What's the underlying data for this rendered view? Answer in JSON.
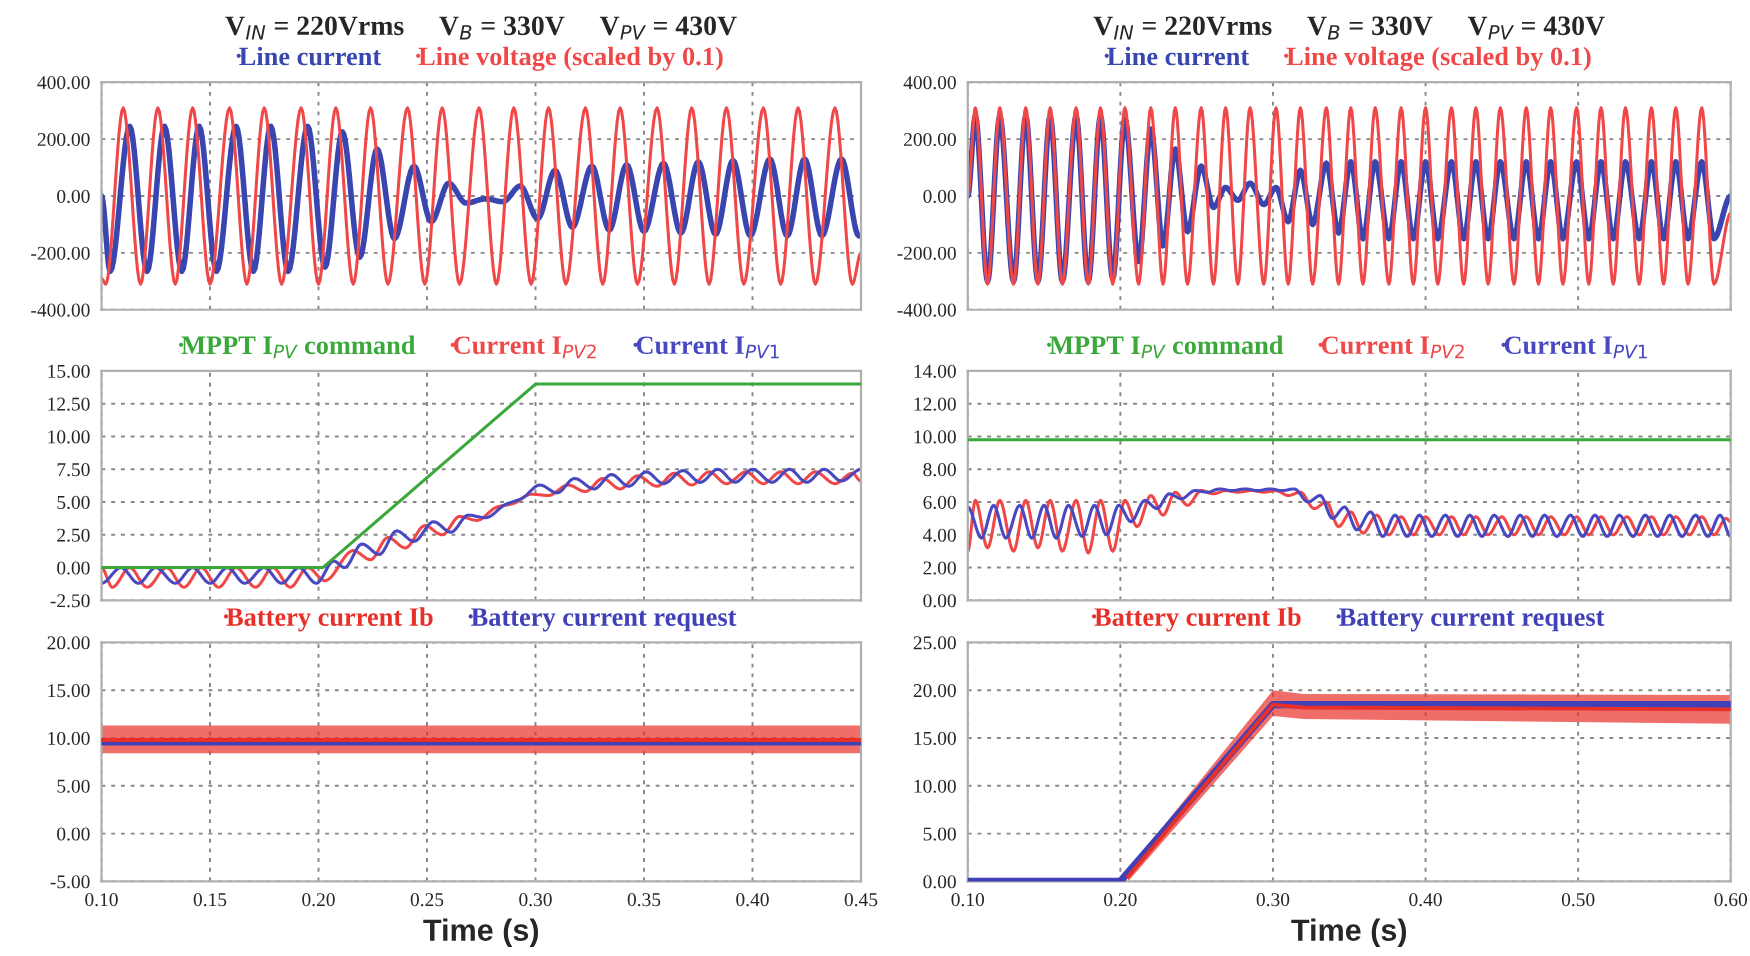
{
  "chart_data": [
    {
      "type": "line",
      "title": "V$_{IN}$ = 220Vrms     V$_{B}$ = 330V     V$_{PV}$ = 430V",
      "legend": "top",
      "grid": true,
      "tick_labels": "y",
      "xlim": [
        0.1,
        0.45
      ],
      "xticks": [
        0.1,
        0.15,
        0.2,
        0.25,
        0.3,
        0.35,
        0.4,
        0.45
      ],
      "ylim": [
        -400,
        400
      ],
      "yticks": [
        {
          "value": -400,
          "label": "-400.00"
        },
        {
          "value": -200,
          "label": "-200.00"
        },
        {
          "value": 0,
          "label": "0.00"
        },
        {
          "value": 200,
          "label": "200.00"
        },
        {
          "value": 400,
          "label": "400.00"
        }
      ],
      "series": [
        {
          "name": "Line current",
          "color": "#3a46b0",
          "x": [
            0.1,
            0.104,
            0.113,
            0.121,
            0.129,
            0.137,
            0.145,
            0.153,
            0.162,
            0.17,
            0.178,
            0.186,
            0.195,
            0.203,
            0.211,
            0.219,
            0.227,
            0.235,
            0.244,
            0.252,
            0.26,
            0.268,
            0.277,
            0.285,
            0.293,
            0.301,
            0.309,
            0.317,
            0.326,
            0.334,
            0.342,
            0.35,
            0.359,
            0.367,
            0.375,
            0.383,
            0.391,
            0.399,
            0.408,
            0.416,
            0.424,
            0.432,
            0.441,
            0.449
          ],
          "values": [
            0,
            -265,
            245,
            -265,
            245,
            -265,
            245,
            -265,
            245,
            -265,
            245,
            -265,
            245,
            -250,
            225,
            -215,
            165,
            -150,
            105,
            -90,
            45,
            -25,
            -10,
            -20,
            35,
            -80,
            90,
            -110,
            105,
            -120,
            110,
            -125,
            115,
            -130,
            120,
            -135,
            125,
            -140,
            130,
            -140,
            130,
            -140,
            130,
            -140
          ]
        },
        {
          "name": "Line voltage (scaled by 0.1)",
          "color": "#f04848",
          "x": [
            0.1,
            0.102,
            0.11,
            0.118,
            0.126,
            0.134,
            0.142,
            0.15,
            0.159,
            0.167,
            0.175,
            0.183,
            0.192,
            0.2,
            0.208,
            0.216,
            0.224,
            0.232,
            0.241,
            0.249,
            0.257,
            0.265,
            0.274,
            0.282,
            0.29,
            0.298,
            0.306,
            0.314,
            0.323,
            0.331,
            0.339,
            0.347,
            0.356,
            0.364,
            0.372,
            0.38,
            0.388,
            0.396,
            0.405,
            0.413,
            0.421,
            0.429,
            0.438,
            0.446,
            0.45
          ],
          "values": [
            -290,
            -310,
            310,
            -310,
            310,
            -310,
            310,
            -310,
            310,
            -310,
            310,
            -310,
            310,
            -310,
            310,
            -310,
            310,
            -310,
            310,
            -310,
            310,
            -310,
            310,
            -310,
            310,
            -310,
            310,
            -310,
            310,
            -310,
            310,
            -310,
            310,
            -310,
            310,
            -310,
            310,
            -310,
            310,
            -310,
            310,
            -310,
            310,
            -310,
            -200
          ]
        }
      ]
    },
    {
      "type": "line",
      "title": "V$_{IN}$ = 220Vrms     V$_{B}$ = 330V     V$_{PV}$ = 430V",
      "legend": "top",
      "grid": true,
      "tick_labels": "y",
      "xlim": [
        0.1,
        0.6
      ],
      "xticks": [
        0.1,
        0.2,
        0.3,
        0.4,
        0.5,
        0.6
      ],
      "ylim": [
        -400,
        400
      ],
      "yticks": [
        {
          "value": -400,
          "label": "-400.00"
        },
        {
          "value": -200,
          "label": "-200.00"
        },
        {
          "value": 0,
          "label": "0.00"
        },
        {
          "value": 200,
          "label": "200.00"
        },
        {
          "value": 400,
          "label": "400.00"
        }
      ],
      "series": [
        {
          "name": "Line current",
          "color": "#3a46b0",
          "x": [
            0.1,
            0.105,
            0.113,
            0.121,
            0.13,
            0.138,
            0.146,
            0.154,
            0.162,
            0.171,
            0.179,
            0.187,
            0.195,
            0.203,
            0.212,
            0.22,
            0.228,
            0.236,
            0.244,
            0.253,
            0.261,
            0.269,
            0.277,
            0.285,
            0.294,
            0.302,
            0.31,
            0.318,
            0.326,
            0.335,
            0.343,
            0.351,
            0.359,
            0.367,
            0.376,
            0.384,
            0.392,
            0.4,
            0.408,
            0.417,
            0.425,
            0.433,
            0.441,
            0.449,
            0.458,
            0.466,
            0.474,
            0.482,
            0.49,
            0.499,
            0.507,
            0.515,
            0.523,
            0.531,
            0.54,
            0.548,
            0.556,
            0.564,
            0.572,
            0.581,
            0.589,
            0.6
          ],
          "values": [
            0,
            280,
            -300,
            280,
            -300,
            280,
            -300,
            280,
            -300,
            280,
            -300,
            280,
            -290,
            270,
            -230,
            235,
            -175,
            165,
            -125,
            105,
            -40,
            30,
            -15,
            45,
            -30,
            30,
            -90,
            90,
            -100,
            115,
            -130,
            120,
            -150,
            120,
            -150,
            120,
            -150,
            120,
            -150,
            120,
            -150,
            120,
            -150,
            120,
            -150,
            120,
            -150,
            120,
            -150,
            120,
            -150,
            120,
            -150,
            120,
            -150,
            120,
            -150,
            120,
            -150,
            120,
            -150,
            0
          ]
        },
        {
          "name": "Line voltage (scaled by 0.1)",
          "color": "#f04848",
          "x": [
            0.1,
            0.105,
            0.113,
            0.121,
            0.13,
            0.138,
            0.146,
            0.154,
            0.162,
            0.171,
            0.179,
            0.187,
            0.195,
            0.203,
            0.212,
            0.22,
            0.228,
            0.236,
            0.244,
            0.253,
            0.261,
            0.269,
            0.277,
            0.285,
            0.294,
            0.302,
            0.31,
            0.318,
            0.326,
            0.335,
            0.343,
            0.351,
            0.359,
            0.367,
            0.376,
            0.384,
            0.392,
            0.4,
            0.408,
            0.417,
            0.425,
            0.433,
            0.441,
            0.449,
            0.458,
            0.466,
            0.474,
            0.482,
            0.49,
            0.499,
            0.507,
            0.515,
            0.523,
            0.531,
            0.54,
            0.548,
            0.556,
            0.564,
            0.572,
            0.581,
            0.589,
            0.6
          ],
          "values": [
            0,
            310,
            -310,
            310,
            -310,
            310,
            -310,
            310,
            -310,
            310,
            -310,
            310,
            -310,
            310,
            -310,
            310,
            -310,
            310,
            -310,
            310,
            -310,
            310,
            -310,
            310,
            -310,
            310,
            -310,
            310,
            -310,
            310,
            -310,
            310,
            -310,
            310,
            -310,
            310,
            -310,
            310,
            -310,
            310,
            -310,
            310,
            -310,
            310,
            -310,
            310,
            -310,
            310,
            -310,
            310,
            -310,
            310,
            -310,
            310,
            -310,
            310,
            -310,
            310,
            -310,
            310,
            -310,
            -60
          ]
        }
      ]
    },
    {
      "type": "line",
      "legend": "top",
      "grid": true,
      "tick_labels": "y",
      "xlim": [
        0.1,
        0.45
      ],
      "xticks": [
        0.1,
        0.15,
        0.2,
        0.25,
        0.3,
        0.35,
        0.4,
        0.45
      ],
      "ylim": [
        -2.5,
        15
      ],
      "yticks": [
        {
          "value": -2.5,
          "label": "-2.50"
        },
        {
          "value": 0,
          "label": "0.00"
        },
        {
          "value": 2.5,
          "label": "2.50"
        },
        {
          "value": 5,
          "label": "5.00"
        },
        {
          "value": 7.5,
          "label": "7.50"
        },
        {
          "value": 10,
          "label": "10.00"
        },
        {
          "value": 12.5,
          "label": "12.50"
        },
        {
          "value": 15,
          "label": "15.00"
        }
      ],
      "series": [
        {
          "name": "MPPT I$_{PV}$ command",
          "color": "#3aa83a",
          "x": [
            0.1,
            0.202,
            0.3,
            0.45
          ],
          "values": [
            0,
            0,
            14,
            14
          ]
        },
        {
          "name": "Current I$_{PV2}$",
          "color": "#f04848",
          "x": [
            0.1,
            0.105,
            0.113,
            0.121,
            0.13,
            0.138,
            0.146,
            0.154,
            0.162,
            0.171,
            0.179,
            0.187,
            0.195,
            0.203,
            0.216,
            0.224,
            0.232,
            0.24,
            0.249,
            0.257,
            0.265,
            0.273,
            0.282,
            0.29,
            0.298,
            0.306,
            0.315,
            0.323,
            0.331,
            0.339,
            0.347,
            0.356,
            0.364,
            0.372,
            0.38,
            0.388,
            0.397,
            0.405,
            0.413,
            0.421,
            0.429,
            0.438,
            0.446,
            0.45
          ],
          "values": [
            0,
            -1.5,
            0,
            -1.5,
            0,
            -1.5,
            0,
            -1.5,
            0,
            -1.5,
            0,
            -1.5,
            0,
            -1.0,
            1.3,
            0.6,
            2.3,
            1.5,
            3.2,
            2.5,
            3.9,
            3.6,
            4.6,
            4.9,
            5.6,
            5.5,
            6.3,
            5.8,
            6.8,
            6.0,
            7.0,
            6.2,
            7.2,
            6.3,
            7.3,
            6.4,
            7.3,
            6.4,
            7.3,
            6.4,
            7.3,
            6.4,
            7.2,
            6.6
          ]
        },
        {
          "name": "Current I$_{PV1}$",
          "color": "#4848c0",
          "x": [
            0.1,
            0.109,
            0.117,
            0.125,
            0.134,
            0.142,
            0.15,
            0.158,
            0.166,
            0.175,
            0.183,
            0.191,
            0.199,
            0.207,
            0.212,
            0.22,
            0.228,
            0.236,
            0.244,
            0.253,
            0.261,
            0.269,
            0.277,
            0.286,
            0.294,
            0.302,
            0.31,
            0.318,
            0.327,
            0.335,
            0.343,
            0.351,
            0.359,
            0.368,
            0.376,
            0.384,
            0.392,
            0.4,
            0.409,
            0.417,
            0.425,
            0.433,
            0.441,
            0.45
          ],
          "values": [
            -1.2,
            0,
            -1.2,
            0,
            -1.2,
            0,
            -1.2,
            0,
            -1.2,
            0,
            -1.2,
            0,
            -1.2,
            0.5,
            0.0,
            1.8,
            1.0,
            2.8,
            2.0,
            3.5,
            2.7,
            4.0,
            3.8,
            4.8,
            5.3,
            6.3,
            5.7,
            6.8,
            6.0,
            7.1,
            6.2,
            7.3,
            6.4,
            7.4,
            6.5,
            7.5,
            6.5,
            7.5,
            6.5,
            7.5,
            6.5,
            7.5,
            6.6,
            7.5
          ]
        }
      ]
    },
    {
      "type": "line",
      "legend": "top",
      "grid": true,
      "tick_labels": "y",
      "xlim": [
        0.1,
        0.6
      ],
      "xticks": [
        0.1,
        0.2,
        0.3,
        0.4,
        0.5,
        0.6
      ],
      "ylim": [
        0,
        14
      ],
      "yticks": [
        {
          "value": 0,
          "label": "0.00"
        },
        {
          "value": 2,
          "label": "2.00"
        },
        {
          "value": 4,
          "label": "4.00"
        },
        {
          "value": 6,
          "label": "6.00"
        },
        {
          "value": 8,
          "label": "8.00"
        },
        {
          "value": 10,
          "label": "10.00"
        },
        {
          "value": 12,
          "label": "12.00"
        },
        {
          "value": 14,
          "label": "14.00"
        }
      ],
      "series": [
        {
          "name": "MPPT I$_{PV}$ command",
          "color": "#3aa83a",
          "x": [
            0.1,
            0.6
          ],
          "values": [
            9.8,
            9.8
          ]
        },
        {
          "name": "Current I$_{PV2}$",
          "color": "#f04848",
          "x": [
            0.1,
            0.105,
            0.113,
            0.121,
            0.13,
            0.138,
            0.146,
            0.154,
            0.162,
            0.171,
            0.179,
            0.187,
            0.195,
            0.203,
            0.211,
            0.22,
            0.228,
            0.236,
            0.244,
            0.253,
            0.261,
            0.269,
            0.277,
            0.286,
            0.294,
            0.302,
            0.31,
            0.318,
            0.327,
            0.335,
            0.343,
            0.351,
            0.359,
            0.368,
            0.376,
            0.384,
            0.392,
            0.4,
            0.409,
            0.417,
            0.425,
            0.433,
            0.441,
            0.45,
            0.458,
            0.466,
            0.474,
            0.482,
            0.491,
            0.499,
            0.507,
            0.515,
            0.523,
            0.532,
            0.54,
            0.548,
            0.556,
            0.564,
            0.573,
            0.581,
            0.589,
            0.597,
            0.6
          ],
          "values": [
            3.0,
            6.1,
            3.2,
            6.1,
            3.0,
            6.1,
            3.2,
            6.1,
            3.0,
            6.1,
            2.9,
            6.1,
            3.0,
            6.1,
            4.5,
            6.4,
            5.2,
            6.6,
            5.8,
            6.7,
            6.5,
            6.7,
            6.6,
            6.7,
            6.6,
            6.7,
            6.4,
            6.6,
            5.6,
            6.0,
            4.5,
            5.4,
            4.1,
            5.2,
            4.0,
            5.1,
            4.0,
            5.1,
            4.0,
            5.1,
            4.0,
            5.1,
            4.0,
            5.1,
            4.0,
            5.1,
            4.0,
            5.1,
            4.0,
            5.1,
            4.0,
            5.1,
            4.0,
            5.1,
            4.0,
            5.1,
            4.0,
            5.1,
            4.0,
            5.1,
            4.0,
            5.0,
            4.8
          ]
        },
        {
          "name": "Current I$_{PV1}$",
          "color": "#4848c0",
          "x": [
            0.1,
            0.109,
            0.117,
            0.125,
            0.134,
            0.142,
            0.15,
            0.158,
            0.166,
            0.175,
            0.183,
            0.191,
            0.199,
            0.207,
            0.216,
            0.224,
            0.232,
            0.24,
            0.249,
            0.257,
            0.265,
            0.273,
            0.282,
            0.29,
            0.298,
            0.306,
            0.314,
            0.323,
            0.331,
            0.339,
            0.347,
            0.355,
            0.364,
            0.372,
            0.38,
            0.388,
            0.396,
            0.404,
            0.413,
            0.421,
            0.429,
            0.437,
            0.445,
            0.454,
            0.462,
            0.47,
            0.478,
            0.486,
            0.495,
            0.503,
            0.511,
            0.519,
            0.527,
            0.536,
            0.544,
            0.552,
            0.56,
            0.568,
            0.577,
            0.585,
            0.593,
            0.6
          ],
          "values": [
            5.7,
            3.8,
            5.8,
            3.8,
            5.8,
            3.8,
            5.8,
            3.8,
            5.8,
            3.9,
            5.8,
            4.0,
            5.8,
            4.8,
            6.1,
            5.6,
            6.5,
            6.2,
            6.7,
            6.6,
            6.8,
            6.7,
            6.8,
            6.7,
            6.8,
            6.7,
            6.8,
            6.0,
            6.4,
            5.0,
            5.7,
            4.3,
            5.4,
            3.9,
            5.2,
            3.9,
            5.2,
            3.9,
            5.2,
            3.9,
            5.2,
            3.9,
            5.2,
            3.9,
            5.2,
            3.9,
            5.2,
            3.9,
            5.2,
            3.9,
            5.2,
            3.9,
            5.2,
            3.9,
            5.2,
            3.9,
            5.2,
            3.9,
            5.2,
            3.9,
            5.2,
            3.9
          ]
        }
      ]
    },
    {
      "type": "line",
      "legend": "top",
      "grid": true,
      "xlabel": "Time (s)",
      "xlim": [
        0.1,
        0.45
      ],
      "xticks": [
        {
          "value": 0.1,
          "label": "0.10"
        },
        {
          "value": 0.15,
          "label": "0.15"
        },
        {
          "value": 0.2,
          "label": "0.20"
        },
        {
          "value": 0.25,
          "label": "0.25"
        },
        {
          "value": 0.3,
          "label": "0.30"
        },
        {
          "value": 0.35,
          "label": "0.35"
        },
        {
          "value": 0.4,
          "label": "0.40"
        },
        {
          "value": 0.45,
          "label": "0.45"
        }
      ],
      "ylim": [
        -5,
        20
      ],
      "yticks": [
        {
          "value": -5,
          "label": "-5.00"
        },
        {
          "value": 0,
          "label": "0.00"
        },
        {
          "value": 5,
          "label": "5.00"
        },
        {
          "value": 10,
          "label": "10.00"
        },
        {
          "value": 15,
          "label": "15.00"
        },
        {
          "value": 20,
          "label": "20.00"
        }
      ],
      "series": [
        {
          "name": "Battery current Ib",
          "color": "#e8302a",
          "x": [
            0.1,
            0.45
          ],
          "values": [
            9.8,
            9.8
          ],
          "lower": [
            8.4,
            8.4
          ],
          "upper": [
            11.3,
            11.3
          ]
        },
        {
          "name": "Battery current request",
          "color": "#4040b8",
          "x": [
            0.1,
            0.45
          ],
          "values": [
            9.6,
            9.6
          ]
        }
      ]
    },
    {
      "type": "line",
      "legend": "top",
      "grid": true,
      "xlabel": "Time (s)",
      "xlim": [
        0.1,
        0.6
      ],
      "xticks": [
        {
          "value": 0.1,
          "label": "0.10"
        },
        {
          "value": 0.2,
          "label": "0.20"
        },
        {
          "value": 0.3,
          "label": "0.30"
        },
        {
          "value": 0.4,
          "label": "0.40"
        },
        {
          "value": 0.5,
          "label": "0.50"
        },
        {
          "value": 0.6,
          "label": "0.60"
        }
      ],
      "ylim": [
        0,
        25
      ],
      "yticks": [
        {
          "value": 0,
          "label": "0.00"
        },
        {
          "value": 5,
          "label": "5.00"
        },
        {
          "value": 10,
          "label": "10.00"
        },
        {
          "value": 15,
          "label": "15.00"
        },
        {
          "value": 20,
          "label": "20.00"
        },
        {
          "value": 25,
          "label": "25.00"
        }
      ],
      "series": [
        {
          "name": "Battery current Ib",
          "color": "#e8302a",
          "x": [
            0.205,
            0.3,
            0.32,
            0.6
          ],
          "values": [
            0.5,
            18.5,
            18.2,
            18.0
          ],
          "lower": [
            0,
            17.3,
            17.0,
            16.5
          ],
          "upper": [
            1.2,
            20.0,
            19.6,
            19.5
          ]
        },
        {
          "name": "Battery current request",
          "color": "#4040b8",
          "x": [
            0.1,
            0.2,
            0.3,
            0.6
          ],
          "values": [
            0,
            0,
            18.5,
            18.5
          ]
        }
      ]
    }
  ]
}
